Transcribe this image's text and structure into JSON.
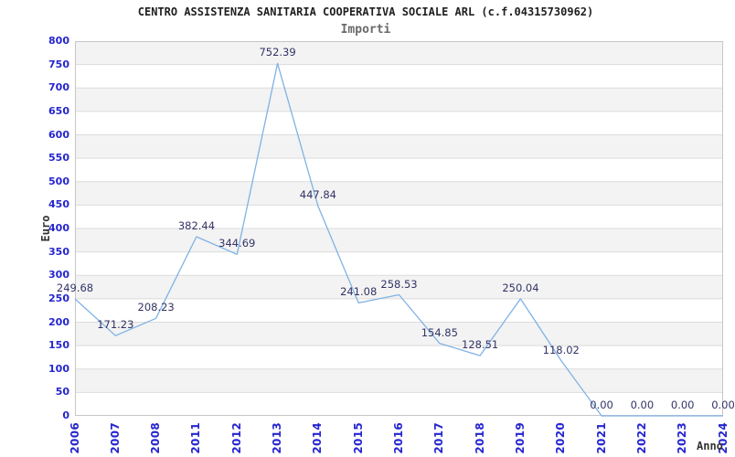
{
  "header": {
    "title": "CENTRO ASSISTENZA SANITARIA COOPERATIVA SOCIALE ARL (c.f.04315730962)",
    "subtitle": "Importi"
  },
  "colors": {
    "title": "#1f1f1f",
    "subtitle": "#6a6a6a",
    "tick_labels": "#2525cf",
    "data_labels": "#333366",
    "axis_titles": "#333333",
    "line": "#7fb2e5",
    "band": "#f3f3f3",
    "grid": "#dcdcdc",
    "plot_border": "#c6c6c6",
    "background": "#ffffff"
  },
  "chart_data": {
    "type": "line",
    "title": "CENTRO ASSISTENZA SANITARIA COOPERATIVA SOCIALE ARL (c.f.04315730962)",
    "subtitle": "Importi",
    "xlabel": "Anno",
    "ylabel": "Euro",
    "categories": [
      "2006",
      "2007",
      "2008",
      "2011",
      "2012",
      "2013",
      "2014",
      "2015",
      "2016",
      "2017",
      "2018",
      "2019",
      "2020",
      "2021",
      "2022",
      "2023",
      "2024"
    ],
    "values": [
      249.68,
      171.23,
      208.23,
      382.44,
      344.69,
      752.39,
      447.84,
      241.08,
      258.53,
      154.85,
      128.51,
      250.04,
      118.02,
      0.0,
      0.0,
      0.0,
      0.0
    ],
    "value_labels": [
      "249.68",
      "171.23",
      "208.23",
      "382.44",
      "344.69",
      "752.39",
      "447.84",
      "241.08",
      "258.53",
      "154.85",
      "128.51",
      "250.04",
      "118.02",
      "0.00",
      "0.00",
      "0.00",
      "0.00"
    ],
    "ylim": [
      0,
      800
    ],
    "ytick_step": 50,
    "grid": "horizontal-bands-alternating",
    "legend": "none",
    "markers": "none"
  }
}
